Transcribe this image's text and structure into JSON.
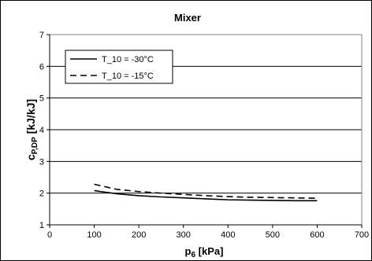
{
  "chart_data": {
    "type": "line",
    "title": "Mixer",
    "xlabel": {
      "main": "p",
      "sub": "6",
      "rest": " [kPa]"
    },
    "ylabel": {
      "main": "c",
      "sub": "P,DP",
      "rest": " [kJ/kJ]"
    },
    "xlim": [
      0,
      700
    ],
    "ylim": [
      1,
      7
    ],
    "xticks": [
      0,
      100,
      200,
      300,
      400,
      500,
      600,
      700
    ],
    "yticks": [
      1,
      2,
      3,
      4,
      5,
      6,
      7
    ],
    "grid": "horizontal",
    "legend_position": "top-left",
    "series": [
      {
        "name": "T_10 = -30°C",
        "line_style": "solid",
        "color": "#000000",
        "x": [
          100,
          150,
          200,
          250,
          300,
          350,
          400,
          450,
          500,
          550,
          600
        ],
        "y": [
          2.08,
          1.98,
          1.92,
          1.88,
          1.85,
          1.82,
          1.79,
          1.78,
          1.77,
          1.76,
          1.76
        ]
      },
      {
        "name": "T_10 = -15°C",
        "line_style": "dashed",
        "color": "#000000",
        "x": [
          100,
          150,
          200,
          250,
          300,
          350,
          400,
          450,
          500,
          550,
          600
        ],
        "y": [
          2.28,
          2.12,
          2.05,
          2.0,
          1.96,
          1.92,
          1.89,
          1.87,
          1.86,
          1.85,
          1.84
        ]
      }
    ]
  }
}
